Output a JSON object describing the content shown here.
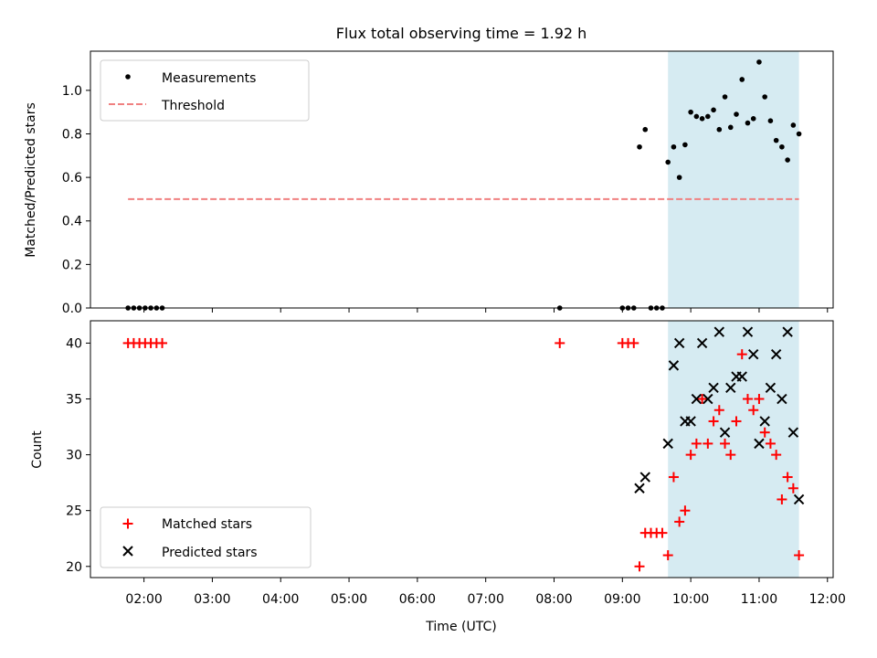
{
  "figure": {
    "title": "Flux total observing time = 1.92 h",
    "xlabel": "Time (UTC)",
    "x_ticks": [
      "02:00",
      "03:00",
      "04:00",
      "05:00",
      "06:00",
      "07:00",
      "08:00",
      "09:00",
      "10:00",
      "11:00",
      "12:00"
    ],
    "colors": {
      "shade": "#add8e6",
      "measurements": "#000000",
      "threshold": "#f08080",
      "matched": "#ff0000",
      "predicted": "#000000"
    }
  },
  "chart_data": [
    {
      "type": "scatter",
      "panel": "top",
      "ylabel": "Matched/Predicted stars",
      "ylim": [
        0,
        1.18
      ],
      "y_ticks": [
        "0.0",
        "0.2",
        "0.4",
        "0.6",
        "0.8",
        "1.0"
      ],
      "xlim": [
        "01:13",
        "12:05"
      ],
      "shaded_interval": [
        "09:40",
        "11:35"
      ],
      "legend": {
        "placement": "upper-left",
        "entries": [
          "Measurements",
          "Threshold"
        ]
      },
      "series": [
        {
          "name": "Measurements",
          "marker": "dot",
          "points": [
            [
              "01:46",
              0.0
            ],
            [
              "01:51",
              0.0
            ],
            [
              "01:56",
              0.0
            ],
            [
              "02:01",
              0.0
            ],
            [
              "02:06",
              0.0
            ],
            [
              "02:11",
              0.0
            ],
            [
              "02:16",
              0.0
            ],
            [
              "08:05",
              0.0
            ],
            [
              "09:00",
              0.0
            ],
            [
              "09:05",
              0.0
            ],
            [
              "09:10",
              0.0
            ],
            [
              "09:25",
              0.0
            ],
            [
              "09:30",
              0.0
            ],
            [
              "09:35",
              0.0
            ],
            [
              "09:15",
              0.74
            ],
            [
              "09:20",
              0.82
            ],
            [
              "09:40",
              0.67
            ],
            [
              "09:45",
              0.74
            ],
            [
              "09:50",
              0.6
            ],
            [
              "09:55",
              0.75
            ],
            [
              "10:00",
              0.9
            ],
            [
              "10:05",
              0.88
            ],
            [
              "10:10",
              0.87
            ],
            [
              "10:15",
              0.88
            ],
            [
              "10:20",
              0.91
            ],
            [
              "10:25",
              0.82
            ],
            [
              "10:30",
              0.97
            ],
            [
              "10:35",
              0.83
            ],
            [
              "10:40",
              0.89
            ],
            [
              "10:45",
              1.05
            ],
            [
              "10:50",
              0.85
            ],
            [
              "10:55",
              0.87
            ],
            [
              "11:00",
              1.13
            ],
            [
              "11:05",
              0.97
            ],
            [
              "11:10",
              0.86
            ],
            [
              "11:15",
              0.77
            ],
            [
              "11:20",
              0.74
            ],
            [
              "11:25",
              0.68
            ],
            [
              "11:30",
              0.84
            ],
            [
              "11:35",
              0.8
            ]
          ]
        },
        {
          "name": "Threshold",
          "marker": "dashed-line",
          "points": [
            [
              "01:46",
              0.5
            ],
            [
              "11:35",
              0.5
            ]
          ]
        }
      ]
    },
    {
      "type": "scatter",
      "panel": "bottom",
      "ylabel": "Count",
      "ylim": [
        19,
        42
      ],
      "y_ticks": [
        "20",
        "25",
        "30",
        "35",
        "40"
      ],
      "xlim": [
        "01:13",
        "12:05"
      ],
      "shaded_interval": [
        "09:40",
        "11:35"
      ],
      "legend": {
        "placement": "lower-left",
        "entries": [
          "Matched stars",
          "Predicted stars"
        ]
      },
      "series": [
        {
          "name": "Matched stars",
          "marker": "plus",
          "points": [
            [
              "01:46",
              40
            ],
            [
              "01:51",
              40
            ],
            [
              "01:56",
              40
            ],
            [
              "02:01",
              40
            ],
            [
              "02:06",
              40
            ],
            [
              "02:11",
              40
            ],
            [
              "02:16",
              40
            ],
            [
              "08:05",
              40
            ],
            [
              "09:00",
              40
            ],
            [
              "09:05",
              40
            ],
            [
              "09:10",
              40
            ],
            [
              "09:15",
              20
            ],
            [
              "09:20",
              23
            ],
            [
              "09:25",
              23
            ],
            [
              "09:30",
              23
            ],
            [
              "09:35",
              23
            ],
            [
              "09:40",
              21
            ],
            [
              "09:45",
              28
            ],
            [
              "09:50",
              24
            ],
            [
              "09:55",
              25
            ],
            [
              "10:00",
              30
            ],
            [
              "10:05",
              31
            ],
            [
              "10:10",
              35
            ],
            [
              "10:15",
              31
            ],
            [
              "10:20",
              33
            ],
            [
              "10:25",
              34
            ],
            [
              "10:30",
              31
            ],
            [
              "10:35",
              30
            ],
            [
              "10:40",
              33
            ],
            [
              "10:45",
              39
            ],
            [
              "10:50",
              35
            ],
            [
              "10:55",
              34
            ],
            [
              "11:00",
              35
            ],
            [
              "11:05",
              32
            ],
            [
              "11:10",
              31
            ],
            [
              "11:15",
              30
            ],
            [
              "11:20",
              26
            ],
            [
              "11:25",
              28
            ],
            [
              "11:30",
              27
            ],
            [
              "11:35",
              21
            ]
          ]
        },
        {
          "name": "Predicted stars",
          "marker": "x",
          "points": [
            [
              "09:15",
              27
            ],
            [
              "09:20",
              28
            ],
            [
              "09:40",
              31
            ],
            [
              "09:45",
              38
            ],
            [
              "09:50",
              40
            ],
            [
              "09:55",
              33
            ],
            [
              "10:00",
              33
            ],
            [
              "10:05",
              35
            ],
            [
              "10:10",
              40
            ],
            [
              "10:15",
              35
            ],
            [
              "10:20",
              36
            ],
            [
              "10:25",
              41
            ],
            [
              "10:30",
              32
            ],
            [
              "10:35",
              36
            ],
            [
              "10:40",
              37
            ],
            [
              "10:45",
              37
            ],
            [
              "10:50",
              41
            ],
            [
              "10:55",
              39
            ],
            [
              "11:00",
              31
            ],
            [
              "11:05",
              33
            ],
            [
              "11:10",
              36
            ],
            [
              "11:15",
              39
            ],
            [
              "11:20",
              35
            ],
            [
              "11:25",
              41
            ],
            [
              "11:30",
              32
            ],
            [
              "11:35",
              26
            ]
          ]
        }
      ]
    }
  ]
}
